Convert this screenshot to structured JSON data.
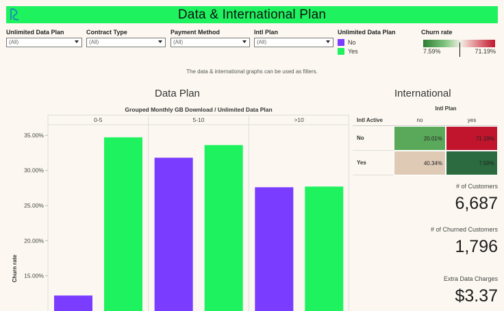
{
  "header": {
    "title": "Data & International Plan",
    "logo_icon": "data-curve-logo-icon",
    "color": "#1ff25f"
  },
  "filters": [
    {
      "label": "Unlimited Data Plan",
      "value": "(All)"
    },
    {
      "label": "Contract Type",
      "value": "(All)"
    },
    {
      "label": "Payment Method",
      "value": "(All)"
    },
    {
      "label": "Intl Plan",
      "value": "(All)"
    }
  ],
  "legend": {
    "title": "Unlimited Data Plan",
    "items": [
      {
        "label": "No",
        "color": "#7a3cff"
      },
      {
        "label": "Yes",
        "color": "#1ff25f"
      }
    ]
  },
  "churn_legend": {
    "title": "Churn rate",
    "min": "7.59%",
    "max": "71.19%"
  },
  "note": "The data & international graphs can be used as filters.",
  "data_plan": {
    "title": "Data Plan"
  },
  "international": {
    "title": "International",
    "subtitle": "Intl Plan",
    "row_header": "Intl Active",
    "columns": [
      "no",
      "yes"
    ],
    "rows": [
      {
        "label": "No",
        "cells": [
          {
            "value": "20.01%",
            "color": "#5aa95a"
          },
          {
            "value": "71.19%",
            "color": "#c0152d"
          }
        ]
      },
      {
        "label": "Yes",
        "cells": [
          {
            "value": "40.34%",
            "color": "#dfcab6"
          },
          {
            "value": "7.59%",
            "color": "#2b6b3f"
          }
        ]
      }
    ]
  },
  "kpis": [
    {
      "label": "# of Customers",
      "value": "6,687"
    },
    {
      "label": "# of Churned Customers",
      "value": "1,796"
    },
    {
      "label": "Extra Data Charges",
      "value": "$3.37"
    }
  ],
  "chart_data": {
    "type": "bar",
    "title": "Grouped Monthly GB Download  /  Unlimited Data Plan",
    "categories": [
      "0-5",
      "5-10",
      ">10"
    ],
    "series": [
      {
        "name": "No",
        "values": [
          12.2,
          31.8,
          27.6
        ],
        "color": "#7a3cff"
      },
      {
        "name": "Yes",
        "values": [
          34.7,
          33.6,
          27.7
        ],
        "color": "#1ff25f"
      }
    ],
    "ylabel": "Churn rate",
    "yticks": [
      "15.00%",
      "20.00%",
      "25.00%",
      "30.00%",
      "35.00%"
    ],
    "ytick_values": [
      15,
      20,
      25,
      30,
      35
    ],
    "ylim": [
      10.0,
      36.5
    ]
  }
}
